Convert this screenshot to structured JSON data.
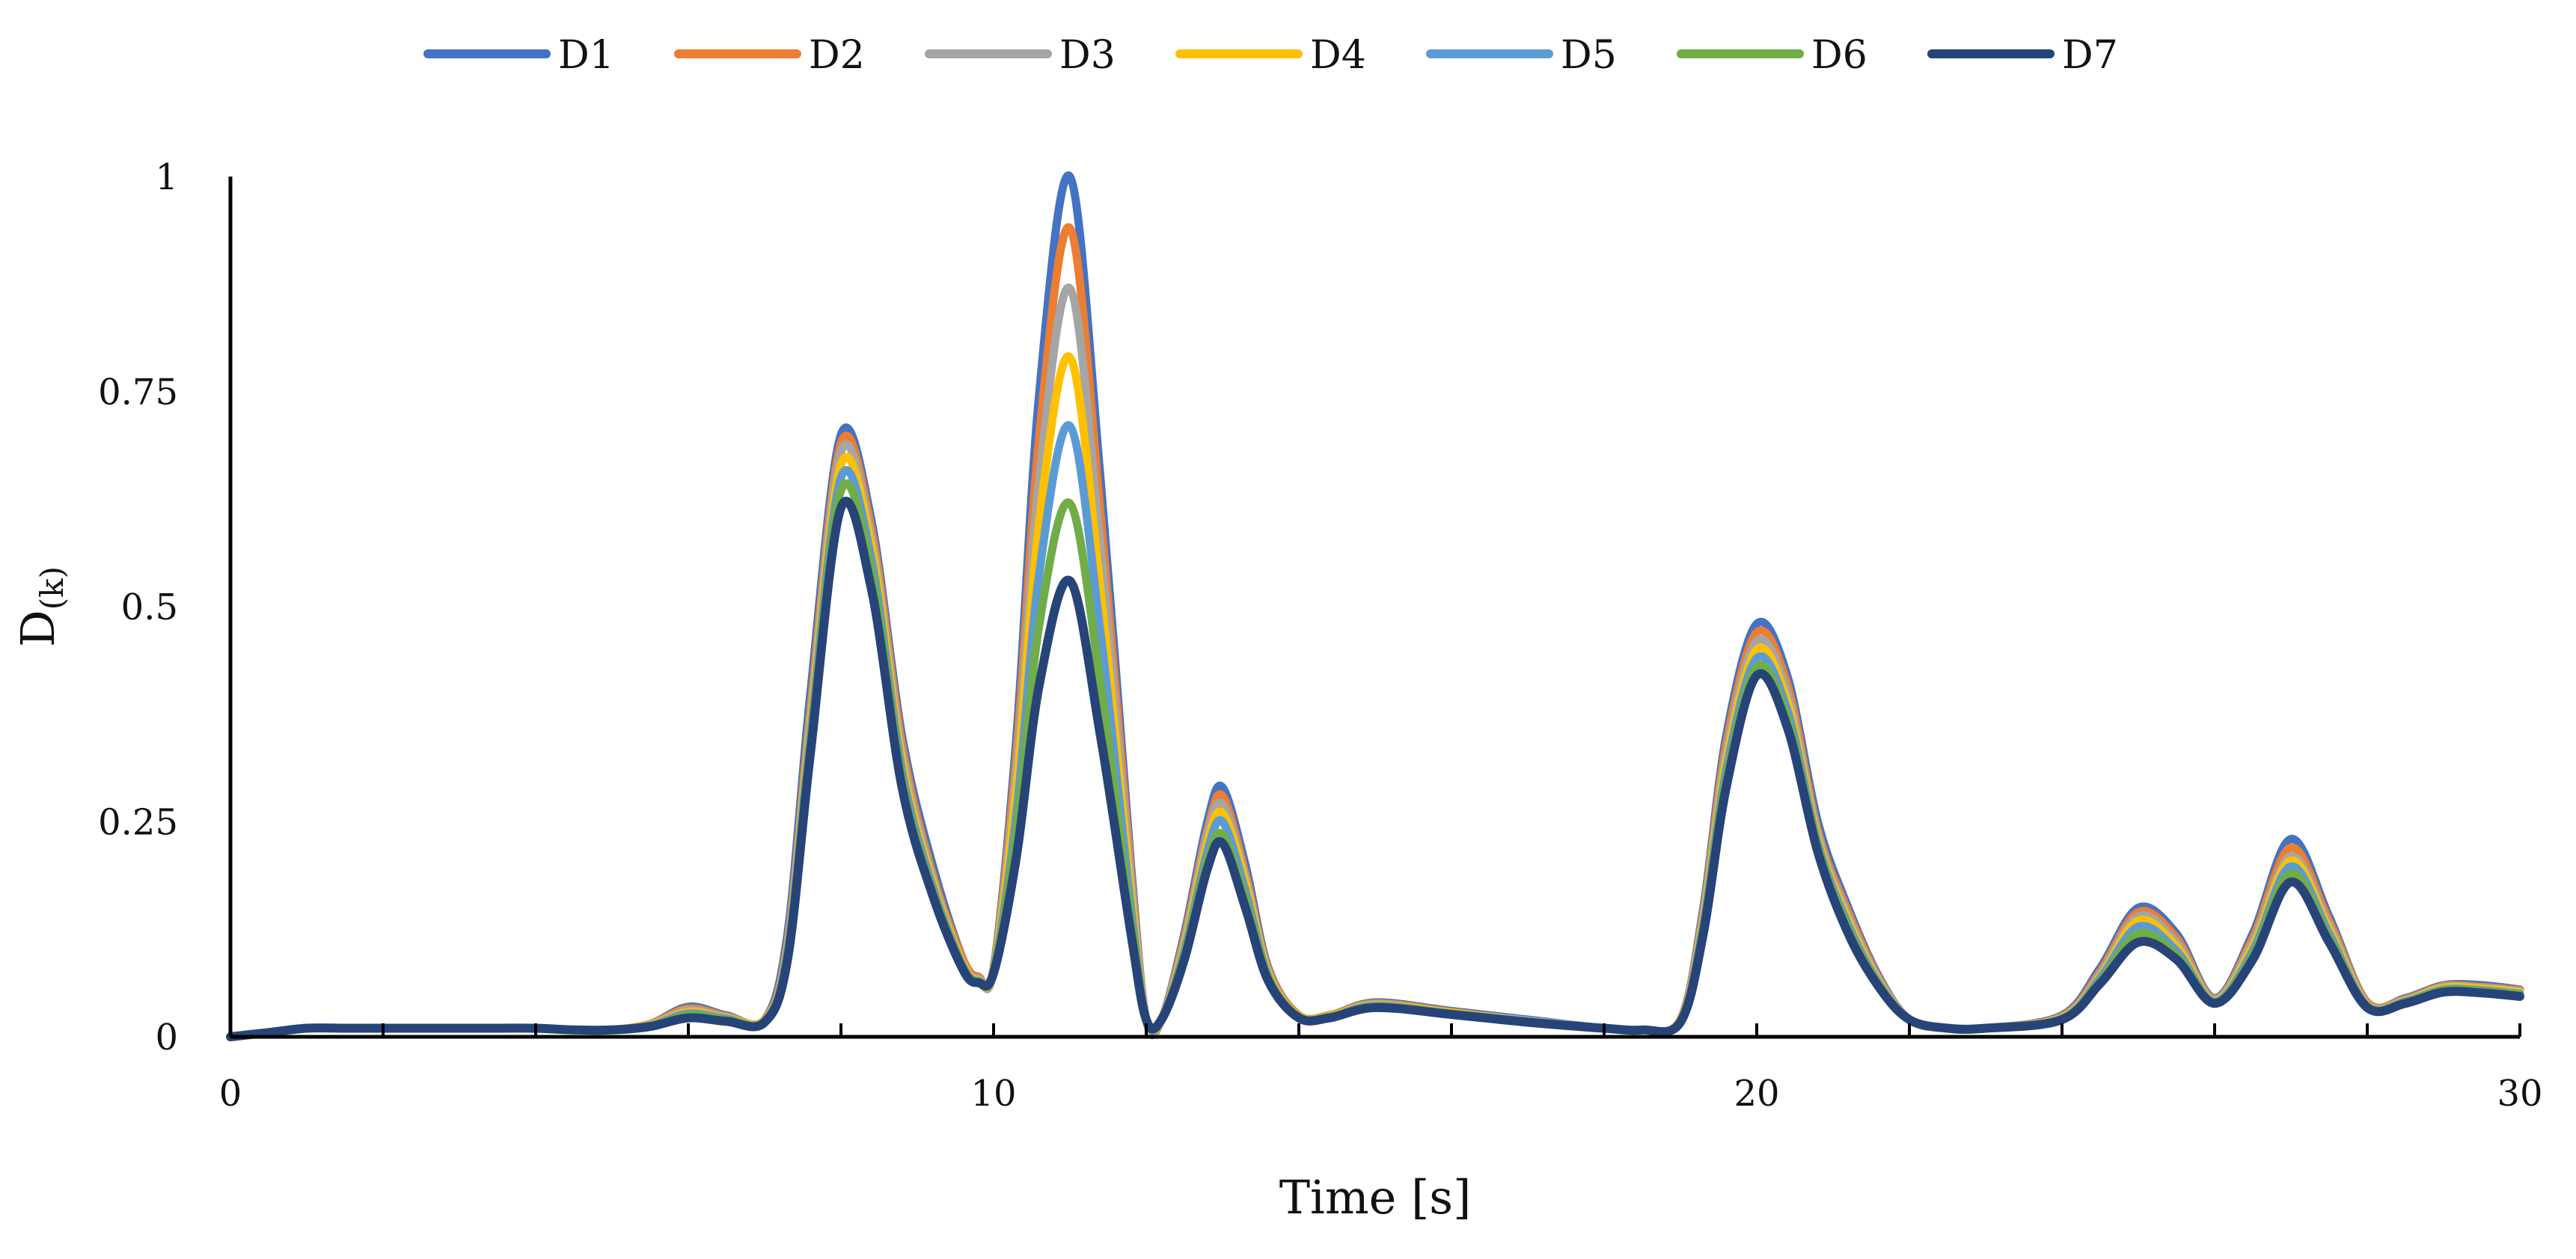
{
  "chart_data": {
    "type": "line",
    "title": "",
    "xlabel": "Time [s]",
    "ylabel": "D",
    "ylabel_subscript": "(k)",
    "xlim": [
      0,
      30
    ],
    "ylim": [
      0,
      1
    ],
    "xticks": [
      0,
      10,
      20,
      30
    ],
    "xtick_labels": [
      "0",
      "10",
      "20",
      "30"
    ],
    "yticks": [
      0,
      0.25,
      0.5,
      0.75,
      1
    ],
    "ytick_labels": [
      "0",
      "0.25",
      "0.5",
      "0.75",
      "1"
    ],
    "grid": false,
    "legend_position": "top-center",
    "x": [
      0,
      0.5,
      1,
      1.5,
      2,
      2.5,
      3,
      3.5,
      4,
      4.5,
      5,
      5.5,
      6,
      6.5,
      7,
      7.3,
      7.6,
      8,
      8.4,
      8.8,
      9.2,
      9.6,
      9.8,
      10,
      10.3,
      10.6,
      11,
      11.4,
      11.8,
      12,
      12.2,
      12.5,
      12.8,
      13,
      13.3,
      13.6,
      14,
      14.4,
      15,
      16,
      17,
      18,
      18.5,
      19,
      19.3,
      19.6,
      20,
      20.4,
      20.8,
      21.2,
      21.6,
      22,
      22.5,
      23,
      24,
      24.5,
      25,
      25.5,
      26,
      26.5,
      27,
      27.5,
      28,
      28.5,
      29,
      29.5,
      30
    ],
    "series": [
      {
        "name": "D1",
        "color": "#4472c4",
        "values": [
          0,
          0.005,
          0.01,
          0.01,
          0.01,
          0.01,
          0.01,
          0.01,
          0.01,
          0.008,
          0.008,
          0.015,
          0.035,
          0.025,
          0.02,
          0.12,
          0.4,
          0.7,
          0.6,
          0.35,
          0.2,
          0.09,
          0.07,
          0.08,
          0.35,
          0.75,
          1.0,
          0.65,
          0.2,
          0.02,
          0.02,
          0.12,
          0.25,
          0.29,
          0.2,
          0.08,
          0.025,
          0.025,
          0.04,
          0.03,
          0.02,
          0.01,
          0.008,
          0.02,
          0.15,
          0.35,
          0.48,
          0.42,
          0.25,
          0.15,
          0.07,
          0.02,
          0.01,
          0.01,
          0.025,
          0.08,
          0.15,
          0.12,
          0.045,
          0.12,
          0.23,
          0.14,
          0.04,
          0.045,
          0.06,
          0.06,
          0.055
        ]
      },
      {
        "name": "D2",
        "color": "#ed7d31",
        "values": [
          0,
          0.005,
          0.01,
          0.01,
          0.01,
          0.01,
          0.01,
          0.01,
          0.01,
          0.008,
          0.008,
          0.015,
          0.033,
          0.024,
          0.02,
          0.11,
          0.38,
          0.69,
          0.59,
          0.34,
          0.19,
          0.09,
          0.07,
          0.08,
          0.33,
          0.7,
          0.94,
          0.61,
          0.19,
          0.02,
          0.02,
          0.115,
          0.24,
          0.28,
          0.19,
          0.078,
          0.025,
          0.025,
          0.039,
          0.029,
          0.019,
          0.01,
          0.008,
          0.02,
          0.145,
          0.34,
          0.47,
          0.41,
          0.24,
          0.145,
          0.068,
          0.02,
          0.01,
          0.01,
          0.024,
          0.076,
          0.145,
          0.115,
          0.044,
          0.115,
          0.22,
          0.135,
          0.04,
          0.044,
          0.059,
          0.058,
          0.054
        ]
      },
      {
        "name": "D3",
        "color": "#a5a5a5",
        "values": [
          0,
          0.005,
          0.01,
          0.01,
          0.01,
          0.01,
          0.01,
          0.01,
          0.01,
          0.008,
          0.008,
          0.014,
          0.031,
          0.023,
          0.019,
          0.105,
          0.37,
          0.68,
          0.58,
          0.33,
          0.185,
          0.085,
          0.068,
          0.078,
          0.31,
          0.65,
          0.87,
          0.57,
          0.18,
          0.02,
          0.02,
          0.11,
          0.235,
          0.27,
          0.185,
          0.075,
          0.024,
          0.024,
          0.038,
          0.028,
          0.019,
          0.01,
          0.008,
          0.019,
          0.14,
          0.33,
          0.46,
          0.4,
          0.235,
          0.14,
          0.066,
          0.02,
          0.01,
          0.01,
          0.023,
          0.073,
          0.14,
          0.11,
          0.043,
          0.11,
          0.21,
          0.13,
          0.038,
          0.043,
          0.058,
          0.057,
          0.053
        ]
      },
      {
        "name": "D4",
        "color": "#ffc000",
        "values": [
          0,
          0.005,
          0.01,
          0.01,
          0.01,
          0.01,
          0.01,
          0.01,
          0.01,
          0.008,
          0.008,
          0.014,
          0.029,
          0.022,
          0.019,
          0.1,
          0.36,
          0.665,
          0.57,
          0.32,
          0.18,
          0.085,
          0.066,
          0.077,
          0.29,
          0.6,
          0.79,
          0.52,
          0.165,
          0.02,
          0.02,
          0.105,
          0.225,
          0.26,
          0.18,
          0.073,
          0.024,
          0.024,
          0.037,
          0.028,
          0.018,
          0.01,
          0.008,
          0.019,
          0.135,
          0.32,
          0.45,
          0.39,
          0.23,
          0.135,
          0.064,
          0.02,
          0.01,
          0.01,
          0.022,
          0.07,
          0.135,
          0.105,
          0.042,
          0.105,
          0.205,
          0.125,
          0.037,
          0.042,
          0.057,
          0.056,
          0.052
        ]
      },
      {
        "name": "D5",
        "color": "#5b9bd5",
        "values": [
          0,
          0.005,
          0.01,
          0.01,
          0.01,
          0.01,
          0.01,
          0.01,
          0.01,
          0.008,
          0.008,
          0.013,
          0.027,
          0.021,
          0.018,
          0.098,
          0.35,
          0.65,
          0.555,
          0.31,
          0.175,
          0.082,
          0.065,
          0.076,
          0.26,
          0.54,
          0.71,
          0.47,
          0.15,
          0.02,
          0.02,
          0.1,
          0.215,
          0.25,
          0.17,
          0.07,
          0.023,
          0.023,
          0.036,
          0.027,
          0.018,
          0.01,
          0.008,
          0.018,
          0.13,
          0.31,
          0.44,
          0.38,
          0.225,
          0.13,
          0.062,
          0.02,
          0.01,
          0.01,
          0.021,
          0.068,
          0.128,
          0.1,
          0.041,
          0.1,
          0.198,
          0.12,
          0.036,
          0.041,
          0.055,
          0.054,
          0.05
        ]
      },
      {
        "name": "D6",
        "color": "#70ad47",
        "values": [
          0,
          0.005,
          0.01,
          0.01,
          0.01,
          0.01,
          0.01,
          0.01,
          0.01,
          0.008,
          0.008,
          0.012,
          0.025,
          0.02,
          0.018,
          0.095,
          0.34,
          0.635,
          0.54,
          0.3,
          0.17,
          0.08,
          0.064,
          0.075,
          0.24,
          0.48,
          0.62,
          0.41,
          0.135,
          0.02,
          0.02,
          0.095,
          0.205,
          0.235,
          0.16,
          0.068,
          0.023,
          0.023,
          0.035,
          0.027,
          0.017,
          0.01,
          0.008,
          0.018,
          0.125,
          0.3,
          0.43,
          0.37,
          0.22,
          0.125,
          0.06,
          0.02,
          0.01,
          0.01,
          0.021,
          0.065,
          0.12,
          0.095,
          0.04,
          0.095,
          0.19,
          0.115,
          0.035,
          0.04,
          0.054,
          0.053,
          0.049
        ]
      },
      {
        "name": "D7",
        "color": "#264478",
        "values": [
          0,
          0.005,
          0.01,
          0.01,
          0.01,
          0.01,
          0.01,
          0.01,
          0.01,
          0.008,
          0.008,
          0.012,
          0.022,
          0.018,
          0.017,
          0.09,
          0.33,
          0.615,
          0.52,
          0.29,
          0.165,
          0.078,
          0.063,
          0.074,
          0.21,
          0.41,
          0.53,
          0.35,
          0.12,
          0.02,
          0.02,
          0.09,
          0.195,
          0.225,
          0.15,
          0.065,
          0.022,
          0.022,
          0.034,
          0.026,
          0.017,
          0.01,
          0.008,
          0.017,
          0.12,
          0.29,
          0.42,
          0.36,
          0.215,
          0.12,
          0.058,
          0.02,
          0.01,
          0.01,
          0.02,
          0.062,
          0.11,
          0.09,
          0.039,
          0.09,
          0.18,
          0.11,
          0.034,
          0.039,
          0.052,
          0.051,
          0.047
        ]
      }
    ]
  }
}
